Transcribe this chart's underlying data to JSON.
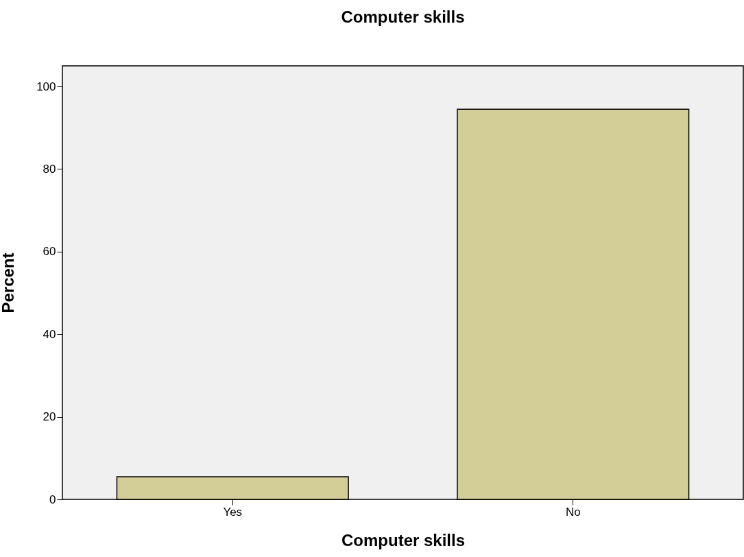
{
  "chart_data": {
    "type": "bar",
    "title": "Computer skills",
    "xlabel": "Computer skills",
    "ylabel": "Percent",
    "categories": [
      "Yes",
      "No"
    ],
    "values": [
      5.5,
      94.5
    ],
    "color": "#d3ce97",
    "ylim": [
      0,
      105
    ],
    "yticks": [
      0,
      20,
      40,
      60,
      80,
      100
    ],
    "grid": false
  }
}
